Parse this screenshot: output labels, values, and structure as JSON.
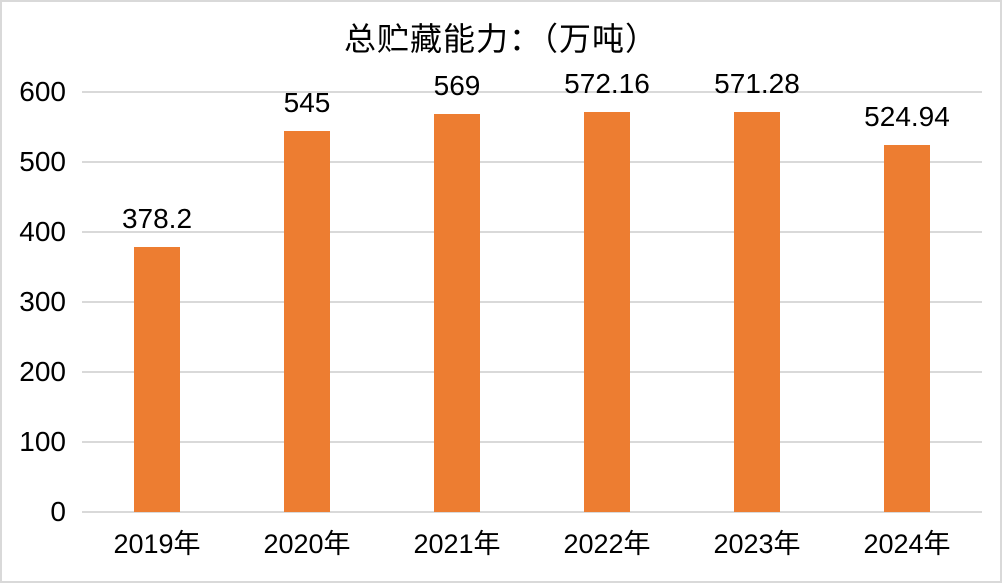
{
  "chart_data": {
    "type": "bar",
    "title": "总贮藏能力：（万吨）",
    "categories": [
      "2019年",
      "2020年",
      "2021年",
      "2022年",
      "2023年",
      "2024年"
    ],
    "values": [
      378.2,
      545,
      569,
      572.16,
      571.28,
      524.94
    ],
    "data_labels": [
      "378.2",
      "545",
      "569",
      "572.16",
      "571.28",
      "524.94"
    ],
    "xlabel": "",
    "ylabel": "",
    "ylim": [
      0,
      600
    ],
    "yticks": [
      0,
      100,
      200,
      300,
      400,
      500,
      600
    ],
    "grid": "horizontal",
    "legend": "none",
    "colors": {
      "bar": "#ED7D31",
      "gridline": "#D9D9D9",
      "axis_line": "#D9D9D9",
      "text": "#000000",
      "background": "#FFFFFF",
      "border": "#D9D9D9"
    }
  }
}
